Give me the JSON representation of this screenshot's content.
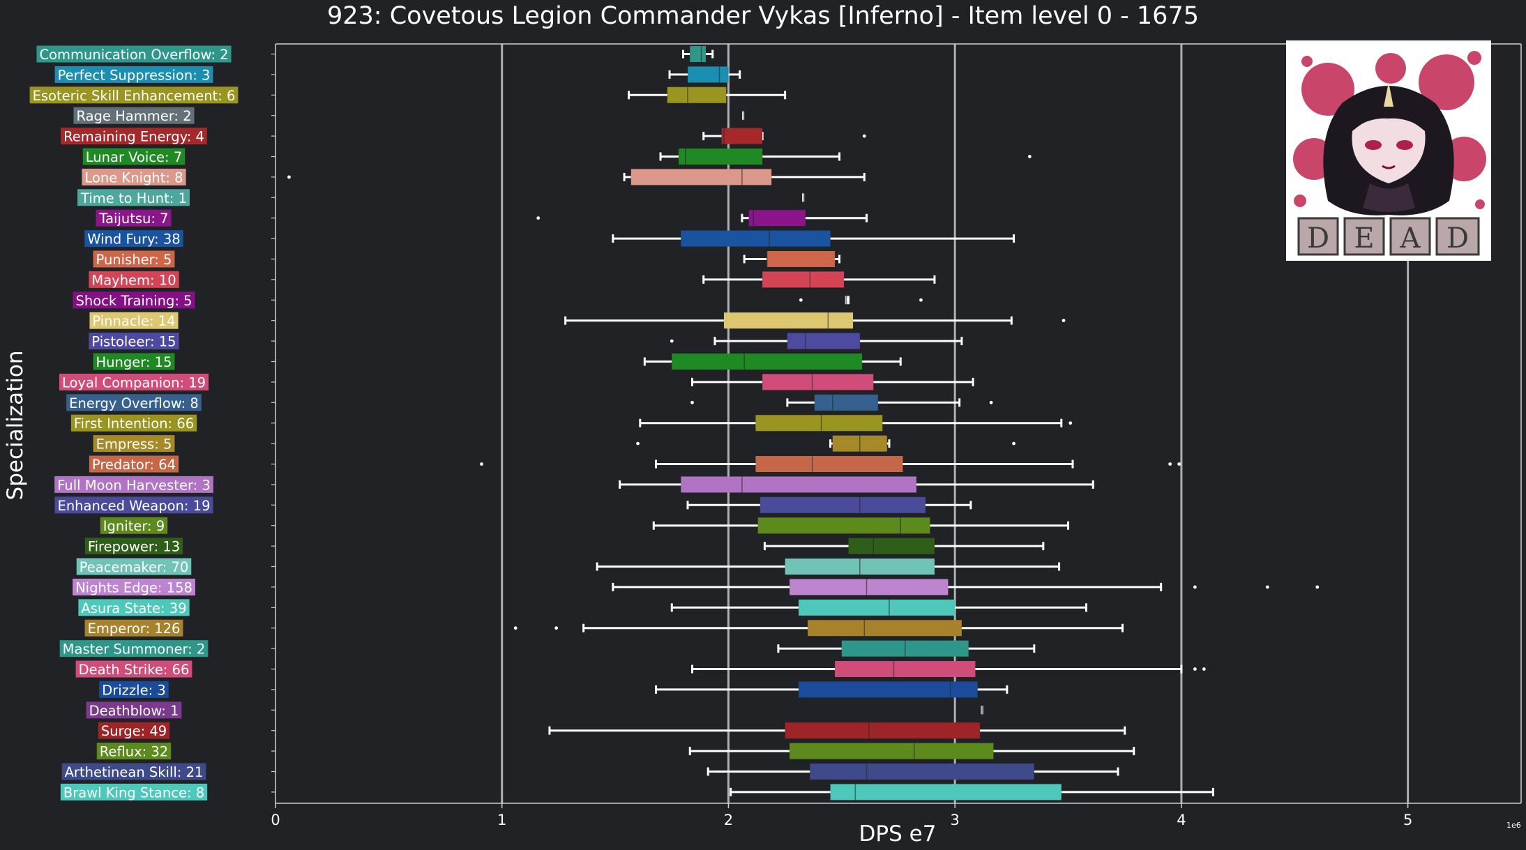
{
  "title": "923: Covetous Legion Commander Vykas [Inferno] - Item level 0 - 1675",
  "chart_data": {
    "type": "box",
    "orientation": "horizontal",
    "xlabel": "DPS e7",
    "ylabel": "Specialization",
    "axis_offset_label": "1e6",
    "xlim": [
      0,
      55
    ],
    "xticks": [
      0,
      1,
      2,
      3,
      4,
      5
    ],
    "xtick_labels": [
      "0",
      "1",
      "2",
      "3",
      "4",
      "5"
    ],
    "grid_lines_at": [
      10,
      20,
      30,
      40,
      50
    ],
    "units_note": "values in millions (1e6)",
    "series": [
      {
        "label": "Communication Overflow: 2",
        "color": "#2e978a",
        "whisker_low": 18.0,
        "q1": 18.3,
        "median": 18.8,
        "q3": 19.0,
        "whisker_high": 19.3,
        "outliers": []
      },
      {
        "label": "Perfect Suppression: 3",
        "color": "#1b8fb2",
        "whisker_low": 17.4,
        "q1": 18.2,
        "median": 19.6,
        "q3": 20.0,
        "whisker_high": 20.5,
        "outliers": []
      },
      {
        "label": "Esoteric Skill Enhancement: 6",
        "color": "#9a9421",
        "whisker_low": 15.6,
        "q1": 17.3,
        "median": 18.2,
        "q3": 19.9,
        "whisker_high": 22.5,
        "outliers": []
      },
      {
        "label": "Rage Hammer: 2",
        "color": "#637078",
        "whisker_low": 20.65,
        "q1": 20.65,
        "median": 20.65,
        "q3": 20.65,
        "whisker_high": 20.65,
        "outliers": []
      },
      {
        "label": "Remaining Energy: 4",
        "color": "#a5282a",
        "whisker_low": 18.9,
        "q1": 19.7,
        "median": 19.8,
        "q3": 21.5,
        "whisker_high": 21.5,
        "outliers": [
          26.0
        ]
      },
      {
        "label": "Lunar Voice: 7",
        "color": "#1f8a23",
        "whisker_low": 17.0,
        "q1": 17.8,
        "median": 18.1,
        "q3": 21.5,
        "whisker_high": 24.9,
        "outliers": [
          33.3
        ]
      },
      {
        "label": "Lone Knight: 8",
        "color": "#dc988b",
        "whisker_low": 15.4,
        "q1": 15.7,
        "median": 20.6,
        "q3": 21.9,
        "whisker_high": 26.0,
        "outliers": [
          0.6
        ]
      },
      {
        "label": "Time to Hunt: 1",
        "color": "#4ea79d",
        "whisker_low": 23.3,
        "q1": 23.3,
        "median": 23.3,
        "q3": 23.3,
        "whisker_high": 23.3,
        "outliers": []
      },
      {
        "label": "Taijutsu: 7",
        "color": "#8b168b",
        "whisker_low": 20.6,
        "q1": 20.9,
        "median": 21.1,
        "q3": 23.4,
        "whisker_high": 26.1,
        "outliers": [
          11.6
        ]
      },
      {
        "label": "Wind Fury: 38",
        "color": "#1a54a0",
        "whisker_low": 14.9,
        "q1": 17.9,
        "median": 21.8,
        "q3": 24.5,
        "whisker_high": 32.6,
        "outliers": []
      },
      {
        "label": "Punisher: 5",
        "color": "#ce6749",
        "whisker_low": 20.7,
        "q1": 21.7,
        "median": 21.7,
        "q3": 24.7,
        "whisker_high": 24.9,
        "outliers": []
      },
      {
        "label": "Mayhem: 10",
        "color": "#d34455",
        "whisker_low": 18.9,
        "q1": 21.5,
        "median": 23.6,
        "q3": 25.1,
        "whisker_high": 29.1,
        "outliers": []
      },
      {
        "label": "Shock Training: 5",
        "color": "#860f88",
        "whisker_low": 25.2,
        "q1": 25.2,
        "median": 25.2,
        "q3": 25.2,
        "whisker_high": 25.3,
        "outliers": [
          23.2,
          28.5
        ]
      },
      {
        "label": "Pinnacle: 14",
        "color": "#ddc871",
        "whisker_low": 12.8,
        "q1": 19.8,
        "median": 24.4,
        "q3": 25.5,
        "whisker_high": 32.5,
        "outliers": [
          34.8
        ]
      },
      {
        "label": "Pistoleer: 15",
        "color": "#4d4a9f",
        "whisker_low": 19.4,
        "q1": 22.6,
        "median": 23.4,
        "q3": 25.8,
        "whisker_high": 30.3,
        "outliers": [
          17.5
        ]
      },
      {
        "label": "Hunger: 15",
        "color": "#1f8a23",
        "whisker_low": 16.3,
        "q1": 17.5,
        "median": 20.7,
        "q3": 25.9,
        "whisker_high": 27.6,
        "outliers": []
      },
      {
        "label": "Loyal Companion: 19",
        "color": "#d04d7a",
        "whisker_low": 18.4,
        "q1": 21.5,
        "median": 23.7,
        "q3": 26.4,
        "whisker_high": 30.8,
        "outliers": []
      },
      {
        "label": "Energy Overflow: 8",
        "color": "#36618f",
        "whisker_low": 22.6,
        "q1": 23.8,
        "median": 24.6,
        "q3": 26.6,
        "whisker_high": 30.2,
        "outliers": [
          18.4,
          31.6
        ]
      },
      {
        "label": "First Intention: 66",
        "color": "#9a9421",
        "whisker_low": 16.1,
        "q1": 21.2,
        "median": 24.1,
        "q3": 26.8,
        "whisker_high": 34.7,
        "outliers": [
          35.1
        ]
      },
      {
        "label": "Empress: 5",
        "color": "#a78a28",
        "whisker_low": 24.5,
        "q1": 24.6,
        "median": 25.8,
        "q3": 27.0,
        "whisker_high": 27.1,
        "outliers": [
          16.0,
          32.6
        ]
      },
      {
        "label": "Predator: 64",
        "color": "#c5684a",
        "whisker_low": 16.8,
        "q1": 21.2,
        "median": 23.7,
        "q3": 27.7,
        "whisker_high": 35.2,
        "outliers": [
          9.1,
          39.5,
          39.9
        ]
      },
      {
        "label": "Full Moon Harvester: 3",
        "color": "#b174c4",
        "whisker_low": 15.2,
        "q1": 17.9,
        "median": 20.6,
        "q3": 28.3,
        "whisker_high": 36.1,
        "outliers": []
      },
      {
        "label": "Enhanced Weapon: 19",
        "color": "#4b4b9c",
        "whisker_low": 18.2,
        "q1": 21.4,
        "median": 25.8,
        "q3": 28.7,
        "whisker_high": 30.7,
        "outliers": []
      },
      {
        "label": "Igniter: 9",
        "color": "#5c8a1d",
        "whisker_low": 16.7,
        "q1": 21.3,
        "median": 27.6,
        "q3": 28.9,
        "whisker_high": 35.0,
        "outliers": []
      },
      {
        "label": "Firepower: 13",
        "color": "#2f5e19",
        "whisker_low": 21.6,
        "q1": 25.3,
        "median": 26.4,
        "q3": 29.1,
        "whisker_high": 33.9,
        "outliers": []
      },
      {
        "label": "Peacemaker: 70",
        "color": "#70c3b7",
        "whisker_low": 14.2,
        "q1": 22.5,
        "median": 25.8,
        "q3": 29.1,
        "whisker_high": 34.6,
        "outliers": []
      },
      {
        "label": "Nights Edge: 158",
        "color": "#bd85cf",
        "whisker_low": 14.9,
        "q1": 22.7,
        "median": 26.1,
        "q3": 29.7,
        "whisker_high": 39.1,
        "outliers": [
          40.6,
          43.8,
          46.0
        ]
      },
      {
        "label": "Asura State: 39",
        "color": "#4dc8bb",
        "whisker_low": 17.5,
        "q1": 23.1,
        "median": 27.1,
        "q3": 30.0,
        "whisker_high": 35.8,
        "outliers": []
      },
      {
        "label": "Emperor: 126",
        "color": "#a7822a",
        "whisker_low": 13.6,
        "q1": 23.5,
        "median": 26.0,
        "q3": 30.3,
        "whisker_high": 37.4,
        "outliers": [
          10.6,
          12.4
        ]
      },
      {
        "label": "Master Summoner: 2",
        "color": "#2e978a",
        "whisker_low": 22.2,
        "q1": 25.0,
        "median": 27.8,
        "q3": 30.6,
        "whisker_high": 33.5,
        "outliers": []
      },
      {
        "label": "Death Strike: 66",
        "color": "#d04d7a",
        "whisker_low": 18.4,
        "q1": 24.7,
        "median": 27.3,
        "q3": 30.9,
        "whisker_high": 40.0,
        "outliers": [
          40.6,
          41.0
        ]
      },
      {
        "label": "Drizzle: 3",
        "color": "#1a4c9a",
        "whisker_low": 16.8,
        "q1": 23.1,
        "median": 29.8,
        "q3": 31.0,
        "whisker_high": 32.3,
        "outliers": []
      },
      {
        "label": "Deathblow: 1",
        "color": "#7c3a8e",
        "whisker_low": 31.2,
        "q1": 31.2,
        "median": 31.2,
        "q3": 31.2,
        "whisker_high": 31.2,
        "outliers": []
      },
      {
        "label": "Surge: 49",
        "color": "#9e2527",
        "whisker_low": 12.1,
        "q1": 22.5,
        "median": 26.2,
        "q3": 31.1,
        "whisker_high": 37.5,
        "outliers": []
      },
      {
        "label": "Reflux: 32",
        "color": "#5c8a1d",
        "whisker_low": 18.3,
        "q1": 22.7,
        "median": 28.2,
        "q3": 31.7,
        "whisker_high": 37.9,
        "outliers": []
      },
      {
        "label": "Arthetinean Skill: 21",
        "color": "#3f4a8a",
        "whisker_low": 19.1,
        "q1": 23.6,
        "median": 26.1,
        "q3": 33.5,
        "whisker_high": 37.2,
        "outliers": []
      },
      {
        "label": "Brawl King Stance: 8",
        "color": "#4dc8bb",
        "whisker_low": 20.1,
        "q1": 24.5,
        "median": 25.6,
        "q3": 34.7,
        "whisker_high": 41.4,
        "outliers": []
      }
    ]
  },
  "image": {
    "kind": "chibi character portrait",
    "text": "DEAD",
    "colors": {
      "background": "#ffffff",
      "splatter": "#c4335a",
      "hair": "#1d1820",
      "skin": "#f2dde2"
    }
  },
  "colors": {
    "background": "#202226",
    "axis": "#d0d0d0",
    "grid": "#b0b0b0",
    "whisker": "#ffffff",
    "text": "#ffffff"
  }
}
